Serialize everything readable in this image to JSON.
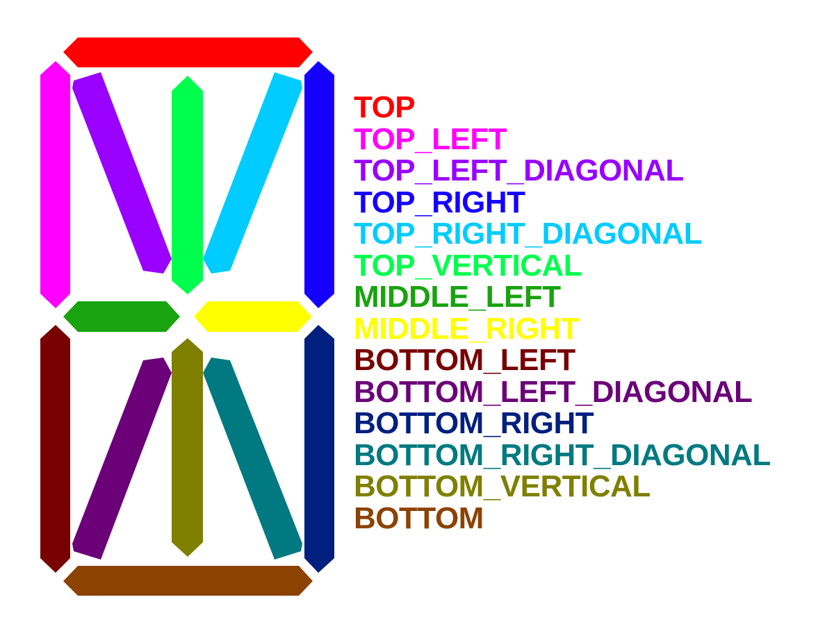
{
  "segments": [
    {
      "id": "top",
      "label": "TOP",
      "color": "#ff0000"
    },
    {
      "id": "top-left",
      "label": "TOP_LEFT",
      "color": "#ff00ff"
    },
    {
      "id": "top-left-diagonal",
      "label": "TOP_LEFT_DIAGONAL",
      "color": "#9900ff"
    },
    {
      "id": "top-right",
      "label": "TOP_RIGHT",
      "color": "#1500ff"
    },
    {
      "id": "top-right-diagonal",
      "label": "TOP_RIGHT_DIAGONAL",
      "color": "#00ccff"
    },
    {
      "id": "top-vertical",
      "label": "TOP_VERTICAL",
      "color": "#00ff4d"
    },
    {
      "id": "middle-left",
      "label": "MIDDLE_LEFT",
      "color": "#19a30e"
    },
    {
      "id": "middle-right",
      "label": "MIDDLE_RIGHT",
      "color": "#ffff00"
    },
    {
      "id": "bottom-left",
      "label": "BOTTOM_LEFT",
      "color": "#780000"
    },
    {
      "id": "bottom-left-diagonal",
      "label": "BOTTOM_LEFT_DIAGONAL",
      "color": "#6b0078"
    },
    {
      "id": "bottom-right",
      "label": "BOTTOM_RIGHT",
      "color": "#001f7f"
    },
    {
      "id": "bottom-right-diagonal",
      "label": "BOTTOM_RIGHT_DIAGONAL",
      "color": "#007a80"
    },
    {
      "id": "bottom-vertical",
      "label": "BOTTOM_VERTICAL",
      "color": "#7f7f00"
    },
    {
      "id": "bottom",
      "label": "BOTTOM",
      "color": "#8c4200"
    }
  ]
}
